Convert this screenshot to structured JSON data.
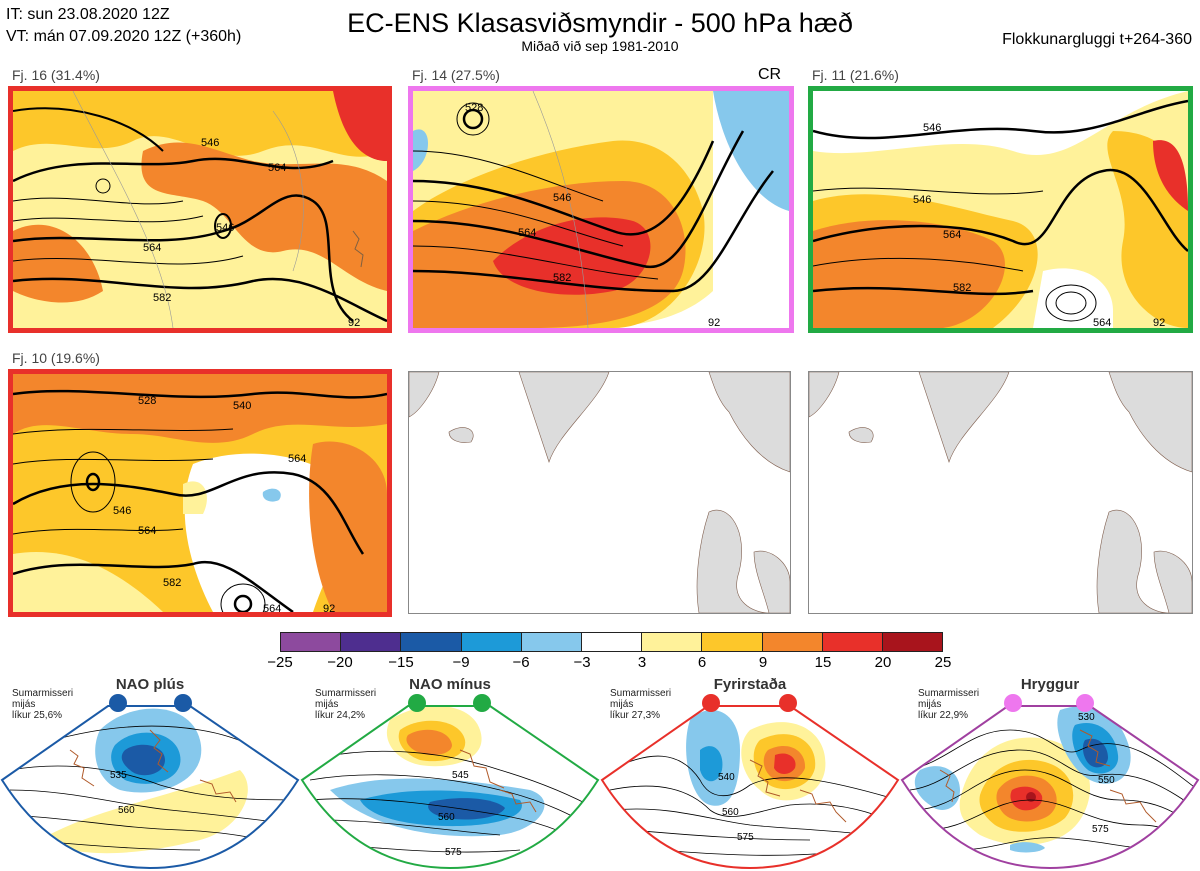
{
  "header": {
    "it_line": "IT: sun 23.08.2020 12Z",
    "vt_line": "VT: mán 07.09.2020 12Z  (+360h)",
    "title": "EC-ENS Klasasviðsmyndir - 500 hPa hæð",
    "subtitle": "Miðað við sep 1981-2010",
    "window": "Flokkunargluggi t+264-360"
  },
  "clusters": [
    {
      "label": "Fj. 16 (31.4%)",
      "frame_color": "#e8302a",
      "contours": [
        "546",
        "564",
        "546",
        "564",
        "582",
        "92"
      ]
    },
    {
      "label": "Fj. 14 (27.5%)",
      "frame_color": "#ee77ee",
      "extra": "CR",
      "contours": [
        "528",
        "546",
        "564",
        "582",
        "92"
      ]
    },
    {
      "label": "Fj. 11 (21.6%)",
      "frame_color": "#22aa44",
      "contours": [
        "546",
        "546",
        "564",
        "582",
        "564",
        "92"
      ]
    },
    {
      "label": "Fj. 10 (19.6%)",
      "frame_color": "#e8302a",
      "contours": [
        "528",
        "540",
        "546",
        "564",
        "564",
        "582",
        "564",
        "92"
      ]
    }
  ],
  "colorbar": {
    "colors": [
      "#8d4a9e",
      "#4e2e8f",
      "#1b5aa6",
      "#1d9ad8",
      "#86c8ec",
      "#ffffff",
      "#fff29a",
      "#fdc72a",
      "#f3862c",
      "#e8302a",
      "#a8141c"
    ],
    "ticks": [
      "−25",
      "−20",
      "−15",
      "−9",
      "−6",
      "−3",
      "3",
      "6",
      "9",
      "15",
      "20",
      "25"
    ]
  },
  "regimes": [
    {
      "name": "NAO plús",
      "info": [
        "Sumarmisseri",
        "mijás",
        "líkur 25,6%"
      ],
      "color": "#1b5aa6",
      "contours": [
        "535",
        "560"
      ]
    },
    {
      "name": "NAO mínus",
      "info": [
        "Sumarmisseri",
        "mijás",
        "líkur 24,2%"
      ],
      "color": "#22aa44",
      "contours": [
        "545",
        "560",
        "575"
      ]
    },
    {
      "name": "Fyrirstaða",
      "info": [
        "Sumarmisseri",
        "mijás",
        "líkur 27,3%"
      ],
      "color": "#e8302a",
      "contours": [
        "540",
        "560",
        "575"
      ]
    },
    {
      "name": "Hryggur",
      "info": [
        "Sumarmisseri",
        "mijás",
        "líkur 22,9%"
      ],
      "color": "#a040a0",
      "contours": [
        "530",
        "550",
        "575"
      ]
    }
  ]
}
